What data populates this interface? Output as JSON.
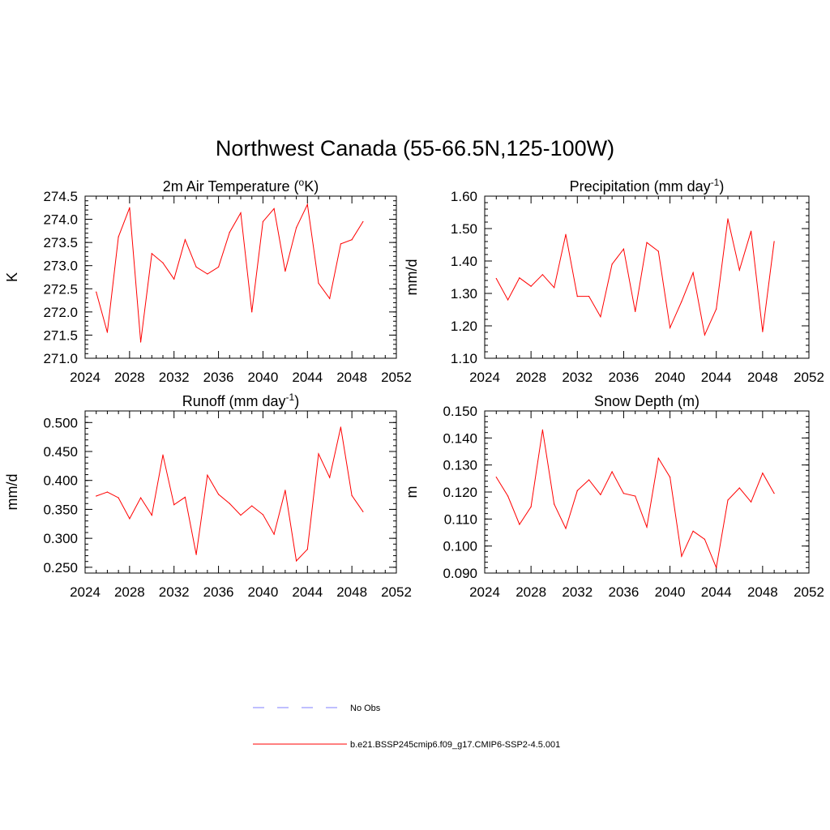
{
  "title": "Northwest Canada (55-66.5N,125-100W)",
  "legend": [
    {
      "label": "No Obs",
      "color": "#9999ff",
      "style": "dashed"
    },
    {
      "label": "b.e21.BSSP245cmip6.f09_g17.CMIP6-SSP2-4.5.001",
      "color": "#ff0000",
      "style": "solid"
    }
  ],
  "chart_data": [
    {
      "type": "line",
      "title": "2m Air Temperature (",
      "title_sup": "o",
      "title_after": "K)",
      "ylabel": "K",
      "xlim": [
        2024,
        2052
      ],
      "xticks": [
        2024,
        2028,
        2032,
        2036,
        2040,
        2044,
        2048,
        2052
      ],
      "ylim": [
        271.0,
        274.5
      ],
      "yticks": [
        "271.0",
        "271.5",
        "272.0",
        "272.5",
        "273.0",
        "273.5",
        "274.0",
        "274.5"
      ],
      "series": [
        {
          "color": "#ff0000",
          "x": [
            2025,
            2026,
            2027,
            2028,
            2029,
            2030,
            2031,
            2032,
            2033,
            2034,
            2035,
            2036,
            2037,
            2038,
            2039,
            2040,
            2041,
            2042,
            2043,
            2044,
            2045,
            2046,
            2047,
            2048,
            2049
          ],
          "values": [
            272.43,
            271.56,
            273.62,
            274.25,
            271.35,
            273.26,
            273.06,
            272.71,
            273.56,
            272.97,
            272.82,
            272.97,
            273.72,
            274.14,
            272.0,
            273.95,
            274.23,
            272.88,
            273.82,
            274.32,
            272.62,
            272.29,
            273.47,
            273.56,
            273.95
          ]
        }
      ]
    },
    {
      "type": "line",
      "title": "Precipitation (mm day",
      "title_sup": "-1",
      "title_after": ")",
      "ylabel": "mm/d",
      "xlim": [
        2024,
        2052
      ],
      "xticks": [
        2024,
        2028,
        2032,
        2036,
        2040,
        2044,
        2048,
        2052
      ],
      "ylim": [
        1.1,
        1.6
      ],
      "yticks": [
        "1.10",
        "1.20",
        "1.30",
        "1.40",
        "1.50",
        "1.60"
      ],
      "series": [
        {
          "color": "#ff0000",
          "x": [
            2025,
            2026,
            2027,
            2028,
            2029,
            2030,
            2031,
            2032,
            2033,
            2034,
            2035,
            2036,
            2037,
            2038,
            2039,
            2040,
            2041,
            2042,
            2043,
            2044,
            2045,
            2046,
            2047,
            2048,
            2049
          ],
          "values": [
            1.346,
            1.28,
            1.348,
            1.322,
            1.358,
            1.318,
            1.482,
            1.291,
            1.291,
            1.228,
            1.39,
            1.437,
            1.244,
            1.457,
            1.43,
            1.194,
            1.275,
            1.364,
            1.172,
            1.252,
            1.53,
            1.372,
            1.492,
            1.182,
            1.46
          ]
        }
      ]
    },
    {
      "type": "line",
      "title": "Runoff (mm day",
      "title_sup": "-1",
      "title_after": ")",
      "ylabel": "mm/d",
      "xlim": [
        2024,
        2052
      ],
      "xticks": [
        2024,
        2028,
        2032,
        2036,
        2040,
        2044,
        2048,
        2052
      ],
      "ylim": [
        0.24,
        0.52
      ],
      "yticks": [
        "0.250",
        "0.300",
        "0.350",
        "0.400",
        "0.450",
        "0.500"
      ],
      "series": [
        {
          "color": "#ff0000",
          "x": [
            2025,
            2026,
            2027,
            2028,
            2029,
            2030,
            2031,
            2032,
            2033,
            2034,
            2035,
            2036,
            2037,
            2038,
            2039,
            2040,
            2041,
            2042,
            2043,
            2044,
            2045,
            2046,
            2047,
            2048,
            2049
          ],
          "values": [
            0.373,
            0.38,
            0.37,
            0.334,
            0.37,
            0.34,
            0.444,
            0.358,
            0.371,
            0.272,
            0.409,
            0.376,
            0.36,
            0.34,
            0.356,
            0.341,
            0.307,
            0.383,
            0.261,
            0.281,
            0.446,
            0.405,
            0.492,
            0.374,
            0.346
          ]
        }
      ]
    },
    {
      "type": "line",
      "title": "Snow Depth (m)",
      "title_sup": "",
      "title_after": "",
      "ylabel": "m",
      "xlim": [
        2024,
        2052
      ],
      "xticks": [
        2024,
        2028,
        2032,
        2036,
        2040,
        2044,
        2048,
        2052
      ],
      "ylim": [
        0.09,
        0.15
      ],
      "yticks": [
        "0.090",
        "0.100",
        "0.110",
        "0.120",
        "0.130",
        "0.140",
        "0.150"
      ],
      "series": [
        {
          "color": "#ff0000",
          "x": [
            2025,
            2026,
            2027,
            2028,
            2029,
            2030,
            2031,
            2032,
            2033,
            2034,
            2035,
            2036,
            2037,
            2038,
            2039,
            2040,
            2041,
            2042,
            2043,
            2044,
            2045,
            2046,
            2047,
            2048,
            2049
          ],
          "values": [
            0.1255,
            0.1185,
            0.108,
            0.1145,
            0.143,
            0.1155,
            0.1065,
            0.1205,
            0.1245,
            0.119,
            0.1275,
            0.1195,
            0.1185,
            0.107,
            0.1325,
            0.1255,
            0.0962,
            0.1055,
            0.1025,
            0.092,
            0.117,
            0.1215,
            0.1163,
            0.127,
            0.1195
          ]
        }
      ]
    }
  ]
}
